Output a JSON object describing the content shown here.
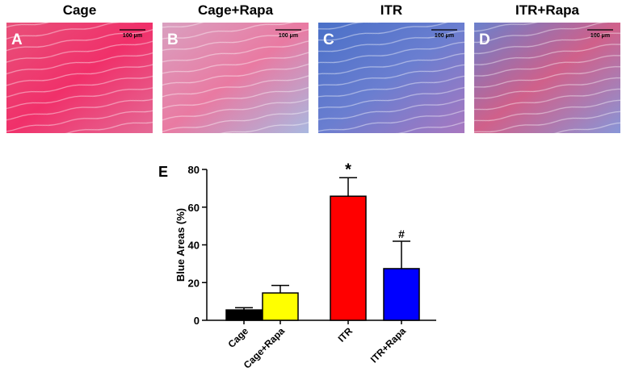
{
  "panels": [
    {
      "title": "Cage",
      "letter": "A",
      "scale_label": "100 μm"
    },
    {
      "title": "Cage+Rapa",
      "letter": "B",
      "scale_label": "100 μm"
    },
    {
      "title": "ITR",
      "letter": "C",
      "scale_label": "100 μm"
    },
    {
      "title": "ITR+Rapa",
      "letter": "D",
      "scale_label": "100 μm"
    }
  ],
  "chart_data": {
    "type": "bar",
    "panel_label": "E",
    "ylabel": "Blue Areas (%)",
    "categories": [
      "Cage",
      "Cage+Rapa",
      "ITR",
      "ITR+Rapa"
    ],
    "values": [
      5.5,
      14.5,
      65.8,
      27.4
    ],
    "errors": [
      1.2,
      4,
      9.8,
      14.5
    ],
    "colors": [
      "#000000",
      "#ffff00",
      "#ff0000",
      "#0000ff"
    ],
    "annotations": [
      null,
      null,
      "*",
      "#"
    ],
    "ylim": [
      0,
      80
    ],
    "yticks": [
      0,
      20,
      40,
      60,
      80
    ],
    "grid": false
  }
}
